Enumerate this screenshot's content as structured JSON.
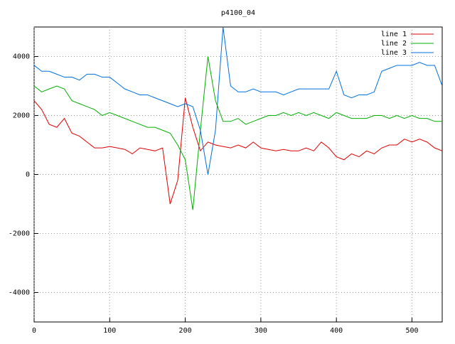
{
  "chart_data": {
    "type": "line",
    "title": "p4100_04",
    "x": [
      0,
      10,
      20,
      30,
      40,
      50,
      60,
      70,
      80,
      90,
      100,
      110,
      120,
      130,
      140,
      150,
      160,
      170,
      180,
      190,
      200,
      210,
      220,
      230,
      240,
      250,
      260,
      270,
      280,
      290,
      300,
      310,
      320,
      330,
      340,
      350,
      360,
      370,
      380,
      390,
      400,
      410,
      420,
      430,
      440,
      450,
      460,
      470,
      480,
      490,
      500,
      510,
      520,
      530,
      540
    ],
    "series": [
      {
        "name": "line 1",
        "color": "#e00000",
        "values": [
          2500,
          2200,
          1700,
          1600,
          1900,
          1400,
          1300,
          1100,
          900,
          900,
          950,
          900,
          850,
          700,
          900,
          850,
          800,
          900,
          -1000,
          -200,
          2600,
          1600,
          800,
          1100,
          1000,
          950,
          900,
          1000,
          900,
          1100,
          900,
          850,
          800,
          850,
          800,
          800,
          900,
          800,
          1100,
          900,
          600,
          500,
          700,
          600,
          800,
          700,
          900,
          1000,
          1000,
          1200,
          1100,
          1200,
          1100,
          900,
          800
        ]
      },
      {
        "name": "line 2",
        "color": "#00b000",
        "values": [
          3000,
          2800,
          2900,
          3000,
          2900,
          2500,
          2400,
          2300,
          2200,
          2000,
          2100,
          2000,
          1900,
          1800,
          1700,
          1600,
          1600,
          1500,
          1400,
          1000,
          500,
          -1200,
          1500,
          4000,
          2500,
          1800,
          1800,
          1900,
          1700,
          1800,
          1900,
          2000,
          2000,
          2100,
          2000,
          2100,
          2000,
          2100,
          2000,
          1900,
          2100,
          2000,
          1900,
          1900,
          1900,
          2000,
          2000,
          1900,
          2000,
          1900,
          2000,
          1900,
          1900,
          1800,
          1800
        ]
      },
      {
        "name": "line 3",
        "color": "#0070e0",
        "values": [
          3700,
          3500,
          3500,
          3400,
          3300,
          3300,
          3200,
          3400,
          3400,
          3300,
          3300,
          3100,
          2900,
          2800,
          2700,
          2700,
          2600,
          2500,
          2400,
          2300,
          2400,
          2300,
          1500,
          0,
          1500,
          5000,
          3000,
          2800,
          2800,
          2900,
          2800,
          2800,
          2800,
          2700,
          2800,
          2900,
          2900,
          2900,
          2900,
          2900,
          3500,
          2700,
          2600,
          2700,
          2700,
          2800,
          3500,
          3600,
          3700,
          3700,
          3700,
          3800,
          3700,
          3700,
          3000
        ]
      }
    ],
    "xlim": [
      0,
      540
    ],
    "ylim": [
      -5000,
      5000
    ],
    "xticks": [
      0,
      100,
      200,
      300,
      400,
      500
    ],
    "yticks": [
      -4000,
      -2000,
      0,
      2000,
      4000
    ],
    "grid": true,
    "legend": "top-right"
  }
}
